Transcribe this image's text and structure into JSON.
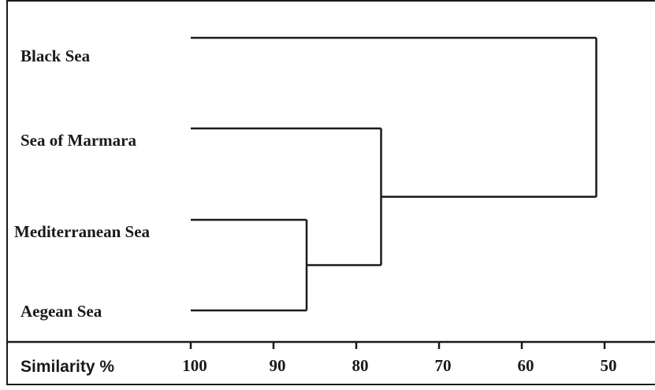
{
  "chart_data": {
    "type": "dendrogram",
    "leaves": [
      "Black Sea",
      "Sea of Marmara",
      "Mediterranean Sea",
      "Aegean Sea"
    ],
    "merges": [
      {
        "members": [
          "Mediterranean Sea",
          "Aegean Sea"
        ],
        "similarity": 86
      },
      {
        "members": [
          "Sea of Marmara",
          "Mediterranean Sea",
          "Aegean Sea"
        ],
        "similarity": 77
      },
      {
        "members": [
          "Black Sea",
          "Sea of Marmara",
          "Mediterranean Sea",
          "Aegean Sea"
        ],
        "similarity": 51
      }
    ],
    "xlabel": "Similarity %",
    "xticks": [
      100,
      90,
      80,
      70,
      60,
      50
    ],
    "xlim": [
      100,
      50
    ],
    "grid": false
  }
}
